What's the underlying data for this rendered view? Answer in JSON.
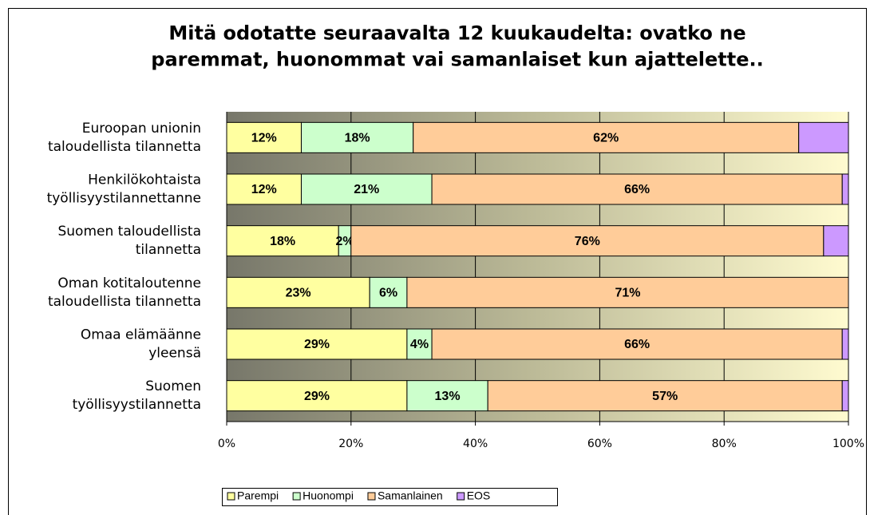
{
  "chart_data": {
    "type": "stacked-barh",
    "title": "Mitä odotatte seuraavalta 12 kuukaudelta: ovatko ne\nparemmat, huonommat vai samanlaiset kun ajattelette..",
    "categories": [
      "Euroopan unionin\ntaloudellista tilannetta",
      "Henkilökohtaista\ntyöllisyystilannettanne",
      "Suomen taloudellista\ntilannetta",
      "Oman kotitaloutenne\ntaloudellista tilannetta",
      "Omaa elämäänne\nyleensä",
      "Suomen\ntyöllisyystilannetta"
    ],
    "series": [
      {
        "name": "Parempi",
        "color": "#ffffa0",
        "values": [
          12,
          12,
          18,
          23,
          29,
          29
        ],
        "value_labels": [
          "12%",
          "12%",
          "18%",
          "23%",
          "29%",
          "29%"
        ]
      },
      {
        "name": "Huonompi",
        "color": "#ccffcc",
        "values": [
          18,
          21,
          2,
          6,
          4,
          13
        ],
        "value_labels": [
          "18%",
          "21%",
          "2%",
          "6%",
          "4%",
          "13%"
        ]
      },
      {
        "name": "Samanlainen",
        "color": "#ffcc99",
        "values": [
          62,
          66,
          76,
          71,
          66,
          57
        ],
        "value_labels": [
          "62%",
          "66%",
          "76%",
          "71%",
          "66%",
          "57%"
        ]
      },
      {
        "name": "EOS",
        "color": "#cc99ff",
        "values": [
          8,
          1,
          4,
          0,
          1,
          1
        ]
      }
    ],
    "xlim": [
      0,
      100
    ],
    "xticks": [
      {
        "value": 0,
        "label": "0%"
      },
      {
        "value": 20,
        "label": "20%"
      },
      {
        "value": 40,
        "label": "40%"
      },
      {
        "value": 60,
        "label": "60%"
      },
      {
        "value": 80,
        "label": "80%"
      },
      {
        "value": 100,
        "label": "100%"
      }
    ],
    "grid": true,
    "legend": "bottom"
  }
}
